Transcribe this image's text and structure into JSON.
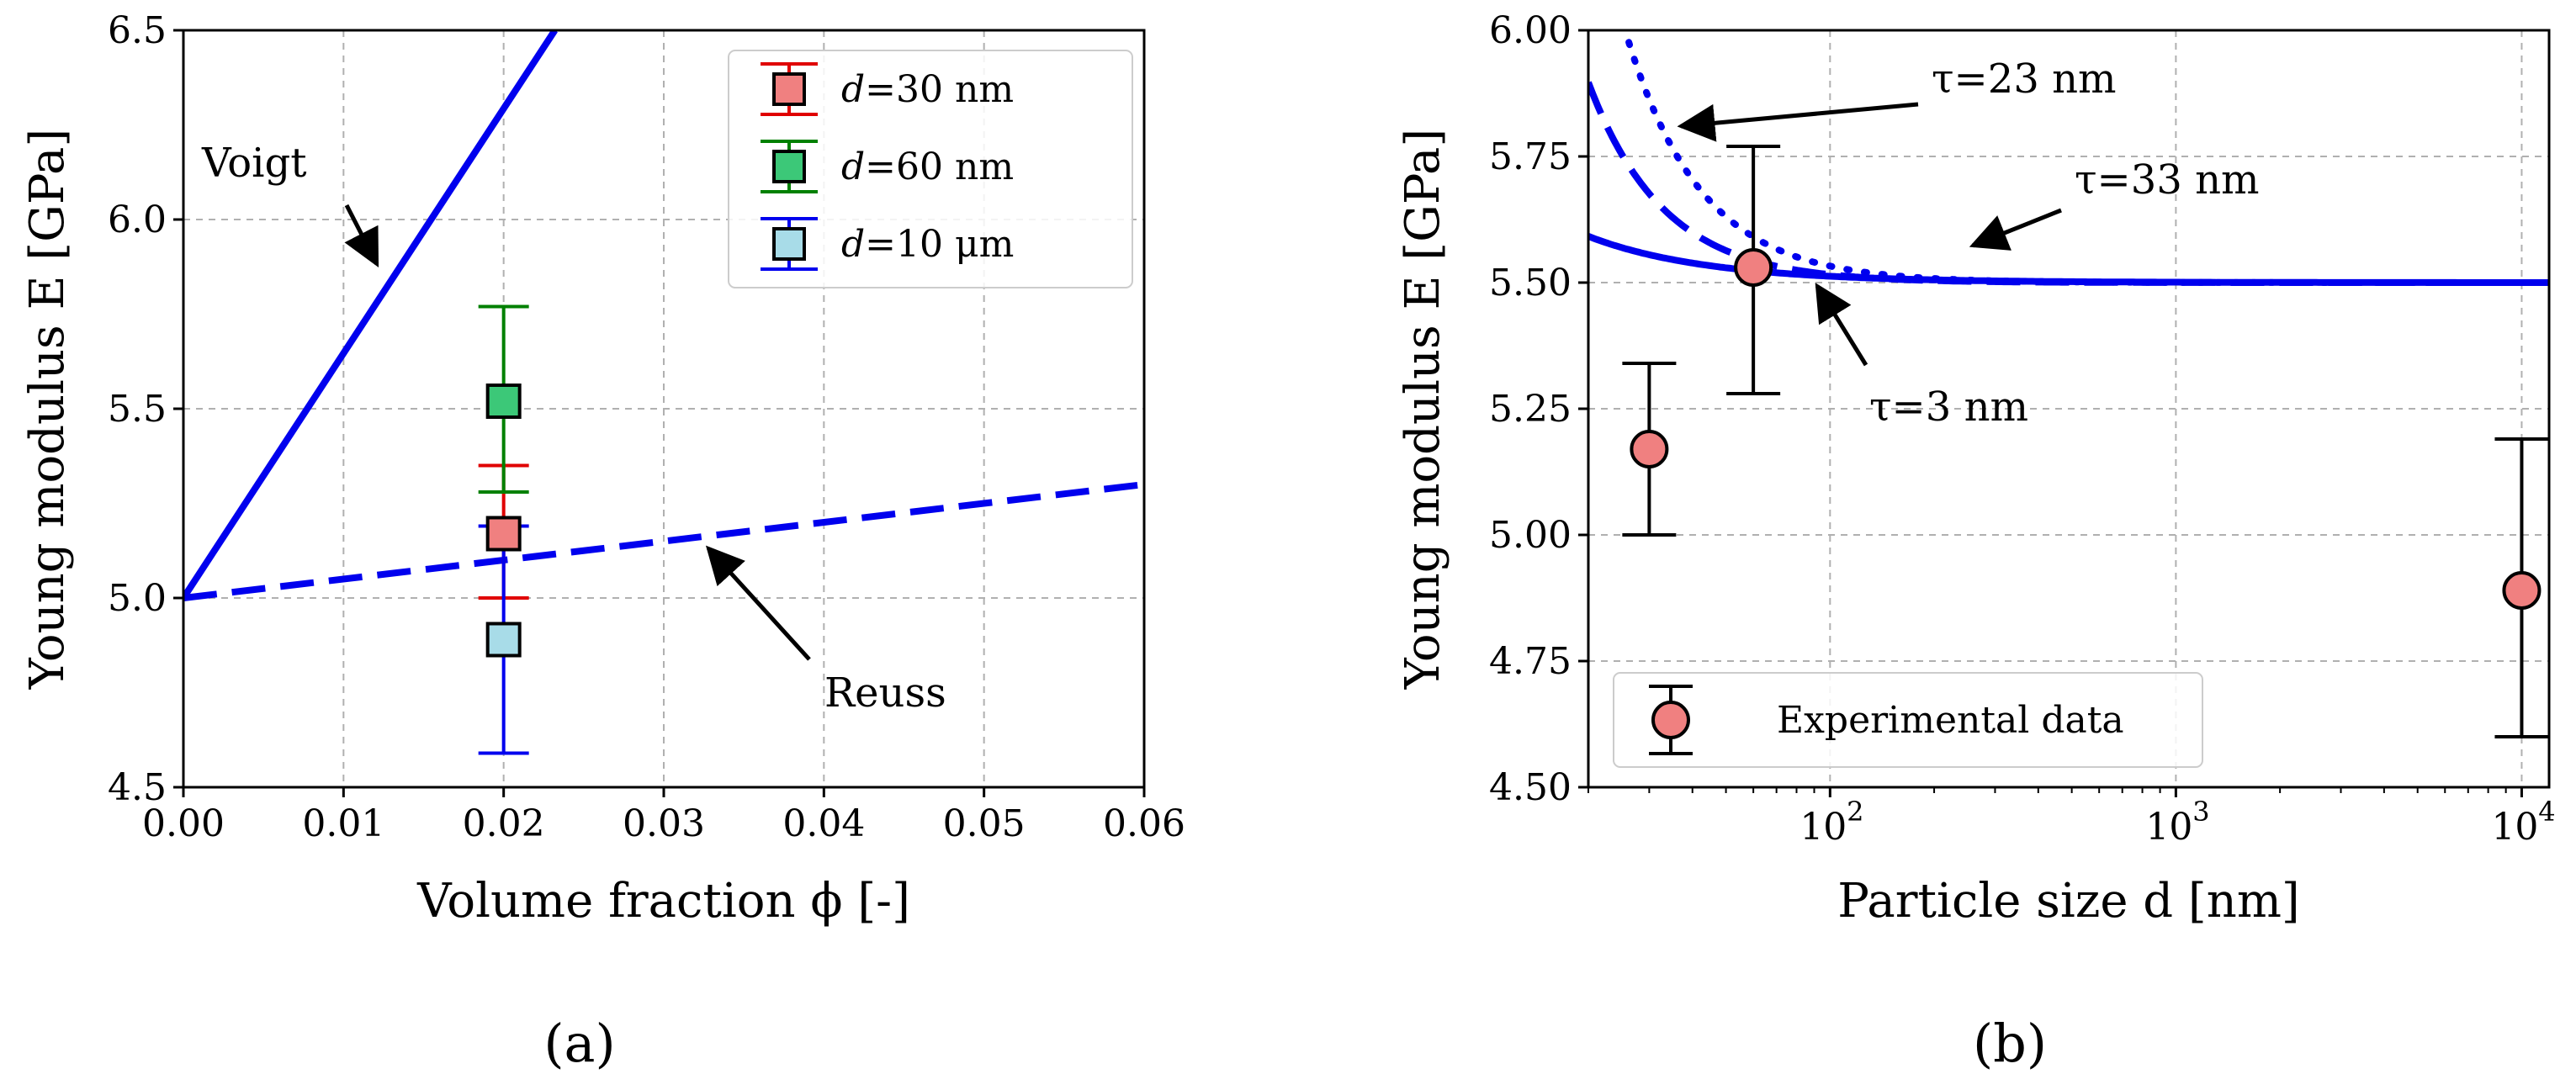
{
  "chart_data": [
    {
      "panel": "(a)",
      "type": "line",
      "xlabel": "Volume fraction ϕ [-]",
      "ylabel": "Young modulus E [GPa]",
      "xlim": [
        0.0,
        0.06
      ],
      "ylim": [
        4.5,
        6.5
      ],
      "xticks": [
        0.0,
        0.01,
        0.02,
        0.03,
        0.04,
        0.05,
        0.06
      ],
      "xtick_labels": [
        "0.00",
        "0.01",
        "0.02",
        "0.03",
        "0.04",
        "0.05",
        "0.06"
      ],
      "yticks": [
        4.5,
        5.0,
        5.5,
        6.0,
        6.5
      ],
      "ytick_labels": [
        "4.5",
        "5.0",
        "5.5",
        "6.0",
        "6.5"
      ],
      "grid": true,
      "legend_position": "top-right",
      "series": [
        {
          "name": "Voigt",
          "style": "solid",
          "color": "#0000ee",
          "x": [
            0.0,
            0.0232
          ],
          "y": [
            5.0,
            6.5
          ]
        },
        {
          "name": "Reuss",
          "style": "dashed",
          "color": "#0000ee",
          "x": [
            0.0,
            0.06
          ],
          "y": [
            5.0,
            5.3
          ]
        }
      ],
      "points": [
        {
          "name": "d=30 nm",
          "d_label": "d",
          "value_label": "=30 nm",
          "x": 0.02,
          "y": 5.17,
          "err_low": 5.0,
          "err_high": 5.35,
          "color": "#f08080",
          "err_color": "#e00000"
        },
        {
          "name": "d=60 nm",
          "d_label": "d",
          "value_label": "=60 nm",
          "x": 0.02,
          "y": 5.52,
          "err_low": 5.28,
          "err_high": 5.77,
          "color": "#3cc878",
          "err_color": "#008000"
        },
        {
          "name": "d=10 μm",
          "d_label": "d",
          "value_label": "=10 μm",
          "x": 0.02,
          "y": 4.89,
          "err_low": 4.59,
          "err_high": 5.19,
          "color": "#a8dce8",
          "err_color": "#0000ee"
        }
      ],
      "annotations": [
        {
          "text": "Voigt",
          "target": [
            0.012,
            5.8
          ]
        },
        {
          "text": "Reuss",
          "target": [
            0.0325,
            5.15
          ]
        }
      ]
    },
    {
      "panel": "(b)",
      "type": "line",
      "xscale": "log",
      "xlabel": "Particle size d [nm]",
      "ylabel": "Young modulus E [GPa]",
      "xlim": [
        20,
        12000
      ],
      "ylim": [
        4.5,
        6.0
      ],
      "xticks": [
        100,
        1000,
        10000
      ],
      "xtick_bases": [
        "10",
        "10",
        "10"
      ],
      "xtick_exps": [
        "2",
        "3",
        "4"
      ],
      "yticks": [
        4.5,
        4.75,
        5.0,
        5.25,
        5.5,
        5.75,
        6.0
      ],
      "ytick_labels": [
        "4.50",
        "4.75",
        "5.00",
        "5.25",
        "5.50",
        "5.75",
        "6.00"
      ],
      "grid": true,
      "legend_position": "bottom-left",
      "model_asymptote": 5.5,
      "series": [
        {
          "name": "τ=3 nm",
          "tau": 3,
          "style": "solid",
          "color": "#0000ee"
        },
        {
          "name": "τ=23 nm",
          "tau": 23,
          "style": "dashed",
          "color": "#0000ee"
        },
        {
          "name": "τ=33 nm",
          "tau": 33,
          "style": "dotted",
          "color": "#0000ee"
        }
      ],
      "experimental": {
        "name": "Experimental data",
        "color": "#f08080",
        "points": [
          {
            "x": 30,
            "y": 5.17,
            "err_low": 5.0,
            "err_high": 5.34
          },
          {
            "x": 60,
            "y": 5.53,
            "err_low": 5.28,
            "err_high": 5.77
          },
          {
            "x": 10000,
            "y": 4.89,
            "err_low": 4.6,
            "err_high": 5.19
          }
        ]
      },
      "annotations": [
        {
          "text": "τ=23 nm",
          "target": [
            38,
            5.81
          ]
        },
        {
          "text": "τ=33 nm",
          "target": [
            240,
            5.58
          ]
        },
        {
          "text": "τ=3 nm",
          "target": [
            105,
            5.5
          ]
        }
      ]
    }
  ]
}
